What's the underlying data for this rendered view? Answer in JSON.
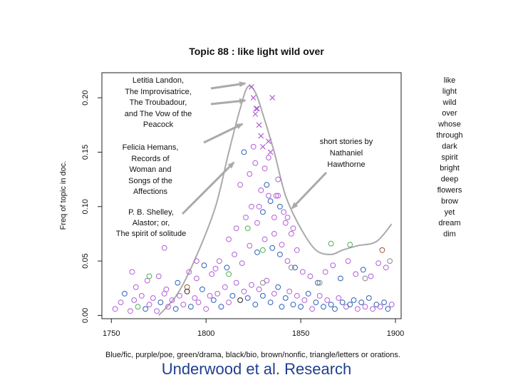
{
  "chart_data": {
    "type": "scatter",
    "title": "Topic 88 : like light wild over",
    "ylabel": "Freq of topic in doc.",
    "xlabel": "Blue/fic, purple/poe, green/drama, black/bio, brown/nonfic, triangle/letters or orations.",
    "xlim": [
      1745,
      1903
    ],
    "ylim": [
      -0.003,
      0.223
    ],
    "xticks": [
      "1750",
      "1800",
      "1850",
      "1900"
    ],
    "xtick_values": [
      1750,
      1800,
      1850,
      1900
    ],
    "yticks": [
      "0.00",
      "0.05",
      "0.10",
      "0.15",
      "0.20"
    ],
    "ytick_values": [
      0,
      0.05,
      0.1,
      0.15,
      0.2
    ],
    "topic_words": [
      "like",
      "light",
      "wild",
      "over",
      "whose",
      "through",
      "dark",
      "spirit",
      "bright",
      "deep",
      "flowers",
      "brow",
      "yet",
      "dream",
      "dim"
    ],
    "annotations": [
      {
        "lines": [
          "Letitia Landon,",
          "The Improvisatrice,",
          "The Troubadour,",
          "and The Vow of the",
          "Peacock"
        ]
      },
      {
        "lines": [
          "Felicia Hemans,",
          "Records of",
          "Woman and",
          "Songs of the",
          "Affections"
        ]
      },
      {
        "lines": [
          "P. B. Shelley,",
          "Alastor; or,",
          "The spirit of solitude"
        ]
      },
      {
        "lines": [
          "short stories by",
          "Nathaniel",
          "Hawthorne"
        ]
      }
    ],
    "colors": {
      "fic": "#2d5fb8",
      "poe": "#b25fd6",
      "drama": "#4caf50",
      "bio": "#222222",
      "nonfic": "#a0522d",
      "letters": "#b25fd6",
      "curve": "#aaaaaa",
      "arrow": "#aaaaaa"
    },
    "trend_curve": {
      "x": [
        1775,
        1785,
        1795,
        1805,
        1812,
        1818,
        1822,
        1826,
        1830,
        1836,
        1842,
        1850,
        1858,
        1866,
        1872,
        1880,
        1890,
        1898
      ],
      "y": [
        0.0,
        0.02,
        0.055,
        0.1,
        0.15,
        0.19,
        0.21,
        0.205,
        0.185,
        0.15,
        0.11,
        0.08,
        0.06,
        0.056,
        0.06,
        0.064,
        0.068,
        0.084
      ]
    },
    "letters_points": {
      "x": [
        1824,
        1825,
        1826,
        1826.5,
        1827,
        1828,
        1829,
        1830,
        1833,
        1834,
        1835
      ],
      "y": [
        0.21,
        0.2,
        0.185,
        0.19,
        0.19,
        0.175,
        0.165,
        0.155,
        0.16,
        0.15,
        0.2
      ]
    },
    "circle_points": {
      "x": [
        1752,
        1755,
        1757,
        1760,
        1762,
        1764,
        1766,
        1768,
        1770,
        1772,
        1774,
        1776,
        1778,
        1780,
        1782,
        1784,
        1786,
        1788,
        1790,
        1792,
        1794,
        1796,
        1798,
        1800,
        1802,
        1804,
        1806,
        1808,
        1810,
        1812,
        1814,
        1816,
        1818,
        1820,
        1822,
        1824,
        1826,
        1828,
        1830,
        1832,
        1834,
        1836,
        1838,
        1840,
        1842,
        1844,
        1846,
        1848,
        1850,
        1852,
        1854,
        1856,
        1858,
        1860,
        1862,
        1864,
        1866,
        1868,
        1870,
        1872,
        1874,
        1876,
        1878,
        1880,
        1882,
        1884,
        1886,
        1888,
        1890,
        1892,
        1894,
        1896,
        1898,
        1761,
        1763,
        1769,
        1775,
        1779,
        1785,
        1791,
        1795,
        1799,
        1803,
        1807,
        1811,
        1815,
        1819,
        1823,
        1827,
        1831,
        1835,
        1839,
        1843,
        1847,
        1851,
        1855,
        1859,
        1863,
        1867,
        1871,
        1875,
        1879,
        1883,
        1887,
        1891,
        1895,
        1812,
        1816,
        1821,
        1824,
        1827,
        1830,
        1833,
        1836,
        1839,
        1842,
        1845,
        1848,
        1818,
        1823,
        1828,
        1832,
        1837,
        1841,
        1846,
        1826,
        1829,
        1834,
        1838,
        1843,
        1820,
        1831,
        1836,
        1840,
        1825,
        1833,
        1838,
        1778,
        1795,
        1805,
        1822,
        1830,
        1866,
        1876,
        1893,
        1770,
        1790,
        1812,
        1830,
        1845,
        1860,
        1884,
        1897
      ],
      "y": [
        0.006,
        0.012,
        0.02,
        0.004,
        0.014,
        0.008,
        0.018,
        0.006,
        0.01,
        0.016,
        0.004,
        0.012,
        0.02,
        0.008,
        0.014,
        0.006,
        0.018,
        0.01,
        0.022,
        0.008,
        0.016,
        0.012,
        0.024,
        0.006,
        0.018,
        0.014,
        0.02,
        0.008,
        0.026,
        0.012,
        0.018,
        0.03,
        0.014,
        0.022,
        0.016,
        0.028,
        0.01,
        0.024,
        0.018,
        0.032,
        0.012,
        0.02,
        0.026,
        0.008,
        0.016,
        0.022,
        0.01,
        0.018,
        0.008,
        0.014,
        0.02,
        0.006,
        0.012,
        0.018,
        0.008,
        0.014,
        0.01,
        0.006,
        0.016,
        0.012,
        0.008,
        0.01,
        0.014,
        0.006,
        0.012,
        0.008,
        0.016,
        0.006,
        0.01,
        0.008,
        0.012,
        0.006,
        0.01,
        0.04,
        0.026,
        0.032,
        0.036,
        0.024,
        0.03,
        0.04,
        0.034,
        0.046,
        0.038,
        0.05,
        0.044,
        0.056,
        0.048,
        0.064,
        0.058,
        0.07,
        0.062,
        0.056,
        0.05,
        0.044,
        0.04,
        0.036,
        0.03,
        0.04,
        0.046,
        0.034,
        0.05,
        0.038,
        0.042,
        0.036,
        0.048,
        0.044,
        0.07,
        0.08,
        0.09,
        0.1,
        0.085,
        0.095,
        0.11,
        0.09,
        0.1,
        0.085,
        0.075,
        0.06,
        0.12,
        0.13,
        0.1,
        0.12,
        0.11,
        0.095,
        0.08,
        0.14,
        0.115,
        0.105,
        0.125,
        0.09,
        0.15,
        0.135,
        0.075,
        0.065,
        0.155,
        0.145,
        0.11,
        0.062,
        0.05,
        0.043,
        0.08,
        0.06,
        0.066,
        0.065,
        0.06,
        0.036,
        0.026,
        0.038,
        0.03,
        0.044,
        0.03,
        0.034,
        0.05
      ],
      "cat": [
        "poe",
        "poe",
        "fic",
        "poe",
        "poe",
        "drama",
        "poe",
        "fic",
        "poe",
        "poe",
        "poe",
        "fic",
        "poe",
        "poe",
        "poe",
        "fic",
        "poe",
        "poe",
        "bio",
        "fic",
        "poe",
        "poe",
        "fic",
        "poe",
        "poe",
        "fic",
        "poe",
        "fic",
        "poe",
        "poe",
        "fic",
        "poe",
        "bio",
        "poe",
        "fic",
        "poe",
        "fic",
        "poe",
        "fic",
        "poe",
        "fic",
        "poe",
        "fic",
        "fic",
        "fic",
        "poe",
        "fic",
        "poe",
        "fic",
        "poe",
        "fic",
        "poe",
        "fic",
        "poe",
        "fic",
        "poe",
        "fic",
        "fic",
        "poe",
        "fic",
        "poe",
        "fic",
        "fic",
        "poe",
        "fic",
        "poe",
        "fic",
        "poe",
        "fic",
        "poe",
        "fic",
        "fic",
        "poe",
        "poe",
        "poe",
        "poe",
        "poe",
        "poe",
        "fic",
        "poe",
        "poe",
        "fic",
        "poe",
        "poe",
        "fic",
        "poe",
        "poe",
        "poe",
        "fic",
        "poe",
        "fic",
        "fic",
        "poe",
        "fic",
        "poe",
        "poe",
        "fic",
        "poe",
        "poe",
        "fic",
        "poe",
        "poe",
        "fic",
        "poe",
        "poe",
        "poe",
        "poe",
        "poe",
        "poe",
        "poe",
        "poe",
        "fic",
        "poe",
        "poe",
        "fic",
        "poe",
        "poe",
        "poe",
        "poe",
        "poe",
        "poe",
        "fic",
        "poe",
        "poe",
        "poe",
        "poe",
        "poe",
        "fic",
        "poe",
        "poe",
        "fic",
        "poe",
        "poe",
        "poe",
        "poe",
        "poe",
        "poe",
        "poe",
        "poe",
        "poe",
        "drama",
        "drama",
        "drama",
        "drama",
        "nonfic",
        "drama",
        "nonfic",
        "drama"
      ]
    }
  },
  "footer": {
    "text": "Underwood et al. Research"
  }
}
